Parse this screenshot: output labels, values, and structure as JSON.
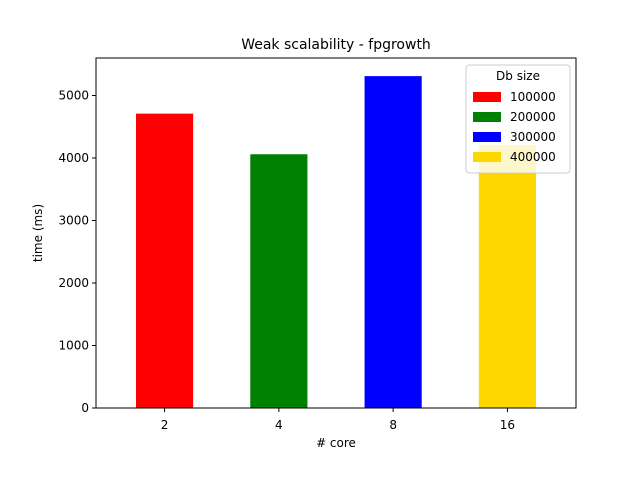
{
  "chart_data": {
    "type": "bar",
    "title": "Weak scalability - fpgrowth",
    "xlabel": "# core",
    "ylabel": "time (ms)",
    "categories": [
      "2",
      "4",
      "8",
      "16"
    ],
    "values": [
      4710,
      4060,
      5310,
      4210
    ],
    "colors": [
      "#ff0000",
      "#008000",
      "#0000ff",
      "#ffd700"
    ],
    "ylim": [
      0,
      5600
    ],
    "yticks": [
      0,
      1000,
      2000,
      3000,
      4000,
      5000
    ],
    "grid": false,
    "legend": {
      "title": "Db size",
      "placement": "top-right",
      "entries": [
        "100000",
        "200000",
        "300000",
        "400000"
      ]
    }
  }
}
